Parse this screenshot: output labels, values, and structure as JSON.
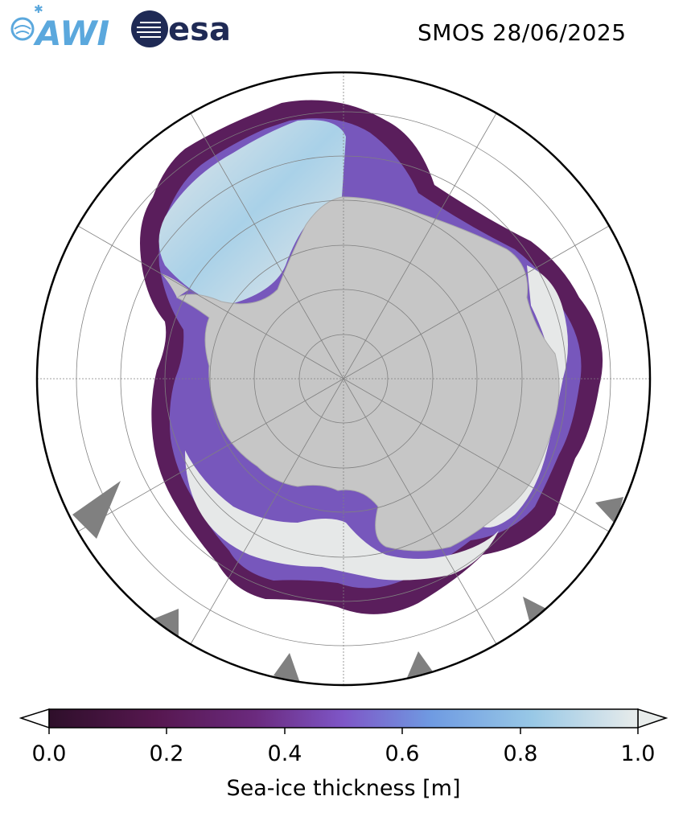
{
  "logos": {
    "awi_text": "AWI",
    "esa_text": "esa"
  },
  "title": "SMOS 28/06/2025",
  "colorbar": {
    "label": "Sea-ice thickness [m]",
    "ticks": [
      "0.0",
      "0.2",
      "0.4",
      "0.6",
      "0.8",
      "1.0"
    ],
    "range": [
      0.0,
      1.0
    ],
    "extend": "both",
    "colormap": [
      "#2e0f2a",
      "#56174f",
      "#6b2a7e",
      "#7e56c7",
      "#6f9be2",
      "#98c8e6",
      "#e8eceb"
    ]
  },
  "map": {
    "projection": "south-polar-stereographic",
    "land_color": "#c6c6c6",
    "ocean_color": "#ffffff",
    "sea_ice_dark_color": "#5a1e5c",
    "sea_ice_mid_color": "#7c62cc",
    "sea_ice_light_color": "#e6e8e8",
    "mask_color": "#808080"
  }
}
